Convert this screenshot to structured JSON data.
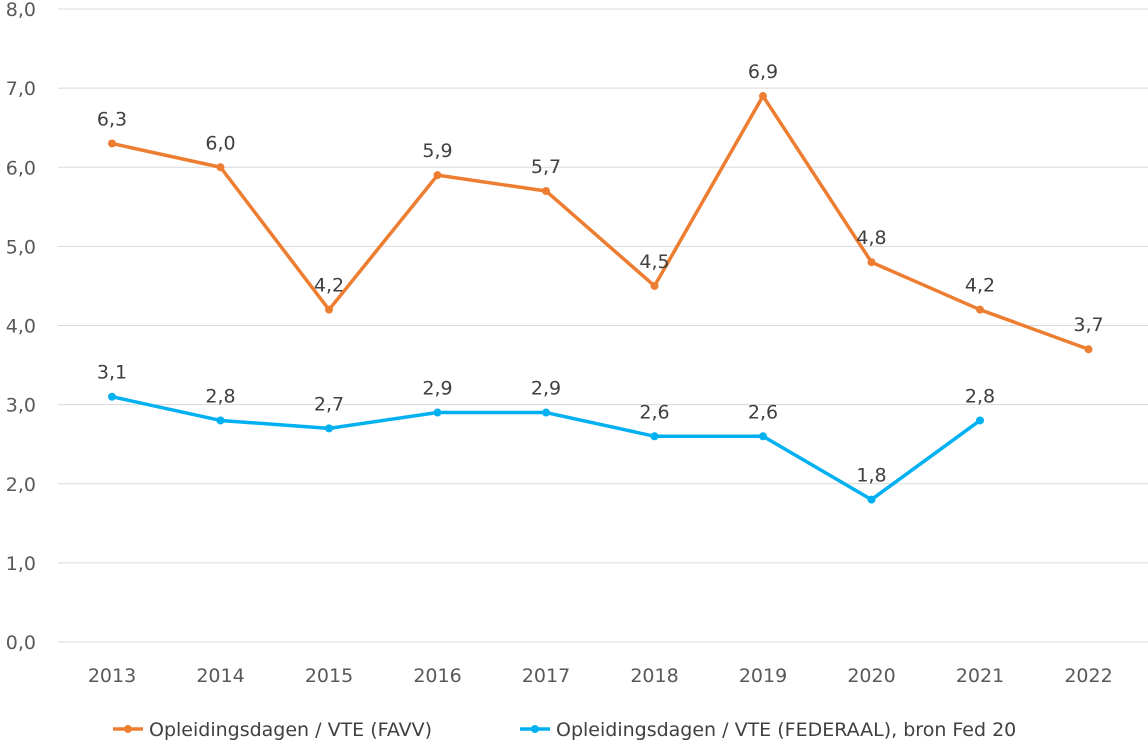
{
  "chart_data": {
    "type": "line",
    "title": "",
    "xlabel": "",
    "ylabel": "",
    "categories": [
      "2013",
      "2014",
      "2015",
      "2016",
      "2017",
      "2018",
      "2019",
      "2020",
      "2021",
      "2022"
    ],
    "ylim": [
      0,
      8
    ],
    "yticks": [
      "0,0",
      "1,0",
      "2,0",
      "3,0",
      "4,0",
      "5,0",
      "6,0",
      "7,0",
      "8,0"
    ],
    "grid": "horizontal",
    "legend_position": "bottom",
    "series": [
      {
        "name": "Opleidingsdagen / VTE (FAVV)",
        "color": "#ED7D31",
        "values": [
          6.3,
          6.0,
          4.2,
          5.9,
          5.7,
          4.5,
          6.9,
          4.8,
          4.2,
          3.7
        ],
        "labels": [
          "6,3",
          "6,0",
          "4,2",
          "5,9",
          "5,7",
          "4,5",
          "6,9",
          "4,8",
          "4,2",
          "3,7"
        ]
      },
      {
        "name": "Opleidingsdagen / VTE (FEDERAAL), bron Fed 20",
        "color": "#00B0F0",
        "values": [
          3.1,
          2.8,
          2.7,
          2.9,
          2.9,
          2.6,
          2.6,
          1.8,
          2.8,
          null
        ],
        "labels": [
          "3,1",
          "2,8",
          "2,7",
          "2,9",
          "2,9",
          "2,6",
          "2,6",
          "1,8",
          "2,8",
          ""
        ]
      }
    ]
  }
}
